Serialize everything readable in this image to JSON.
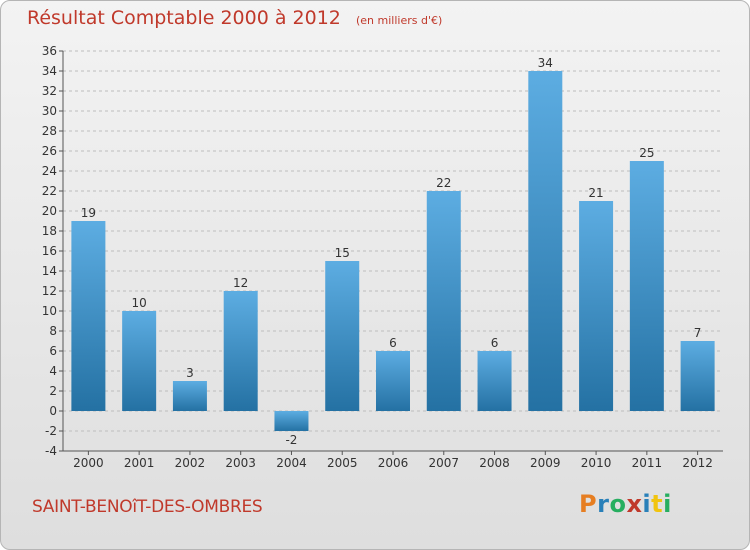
{
  "title": {
    "main": "Résultat Comptable 2000 à 2012",
    "unit": "(en milliers d'€)"
  },
  "commune": "SAINT-BENOîT-DES-OMBRES",
  "logo": {
    "letters": [
      "P",
      "r",
      "o",
      "x",
      "i",
      "t",
      "i"
    ],
    "colors": [
      "#e67e22",
      "#2980b9",
      "#27ae60",
      "#c0392b",
      "#2980b9",
      "#f1c40f",
      "#27ae60"
    ]
  },
  "colors": {
    "bar_light": "#5dade2",
    "bar_dark": "#2471a3",
    "title": "#c0392b",
    "grid": "#bdbdbd"
  },
  "chart_data": {
    "type": "bar",
    "categories": [
      "2000",
      "2001",
      "2002",
      "2003",
      "2004",
      "2005",
      "2006",
      "2007",
      "2008",
      "2009",
      "2010",
      "2011",
      "2012"
    ],
    "values": [
      19,
      10,
      3,
      12,
      -2,
      15,
      6,
      22,
      6,
      34,
      21,
      25,
      7
    ],
    "data_labels": [
      "19",
      "10",
      "3",
      "12",
      "-2",
      "15",
      "6",
      "22",
      "6",
      "34",
      "21",
      "25",
      "7"
    ],
    "ylim": [
      -4,
      36
    ],
    "yticks": [
      -4,
      -2,
      0,
      2,
      4,
      6,
      8,
      10,
      12,
      14,
      16,
      18,
      20,
      22,
      24,
      26,
      28,
      30,
      32,
      34,
      36
    ],
    "grid": true,
    "title": "Résultat Comptable 2000 à 2012",
    "xlabel": "",
    "ylabel": ""
  }
}
